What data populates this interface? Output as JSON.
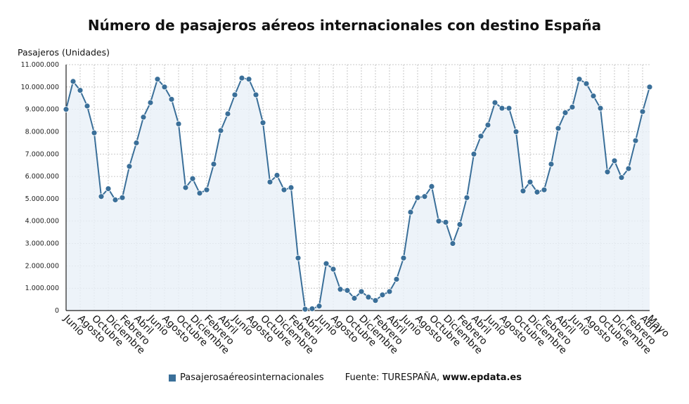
{
  "title": "Número de pasajeros aéreos internacionales con destino España",
  "colors": {
    "line": "#3a6f99",
    "marker": "#3a6f99",
    "fill": "#e8f0f7",
    "grid": "#b9b9b9"
  },
  "legend": {
    "label": "Pasajerosaéreosinternacionales"
  },
  "source": {
    "label": "Fuente: TURESPAÑA,",
    "site": "www.epdata.es"
  },
  "chart_data": {
    "type": "line",
    "title": "Número de pasajeros aéreos internacionales con destino España",
    "ylabel": "Pasajeros (Unidades)",
    "ylim": [
      0,
      11000000
    ],
    "yticks": [
      0,
      1000000,
      2000000,
      3000000,
      4000000,
      5000000,
      6000000,
      7000000,
      8000000,
      9000000,
      10000000,
      11000000
    ],
    "ytick_labels": [
      "0",
      "1.000.000",
      "2.000.000",
      "3.000.000",
      "4.000.000",
      "5.000.000",
      "6.000.000",
      "7.000.000",
      "8.000.000",
      "9.000.000",
      "10.000.000",
      "11.000.000"
    ],
    "grid": true,
    "x_tick_labels": [
      "Junio",
      "Agosto",
      "Octubre",
      "Diciembre",
      "Febrero",
      "Abril",
      "Junio",
      "Agosto",
      "Octubre",
      "Diciembre",
      "Febrero",
      "Abril",
      "Junio",
      "Agosto",
      "Octubre",
      "Diciembre",
      "Febrero",
      "Abril",
      "Junio",
      "Agosto",
      "Octubre",
      "Diciembre",
      "Febrero",
      "Abril",
      "Junio",
      "Agosto",
      "Octubre",
      "Diciembre",
      "Febrero",
      "Abril",
      "Junio",
      "Agosto",
      "Octubre",
      "Diciembre",
      "Febrero",
      "Abril",
      "Junio",
      "Agosto",
      "Octubre",
      "Diciembre",
      "Febrero",
      "Abril",
      "Mayo"
    ],
    "series": [
      {
        "name": "Pasajerosaéreosinternacionales",
        "values": [
          9000000,
          10250000,
          9850000,
          9150000,
          7950000,
          5100000,
          5450000,
          4950000,
          5050000,
          6450000,
          7500000,
          8650000,
          9300000,
          10350000,
          10000000,
          9450000,
          8350000,
          5500000,
          5900000,
          5250000,
          5400000,
          6550000,
          8050000,
          8800000,
          9650000,
          10400000,
          10350000,
          9650000,
          8400000,
          5750000,
          6050000,
          5400000,
          5500000,
          2350000,
          60000,
          80000,
          200000,
          2100000,
          1850000,
          950000,
          900000,
          550000,
          850000,
          600000,
          450000,
          700000,
          850000,
          1400000,
          2350000,
          4400000,
          5050000,
          5100000,
          5550000,
          4000000,
          3950000,
          3000000,
          3850000,
          5050000,
          7000000,
          7800000,
          8300000,
          9300000,
          9050000,
          9050000,
          8000000,
          5350000,
          5750000,
          5300000,
          5400000,
          6550000,
          8150000,
          8850000,
          9100000,
          10350000,
          10150000,
          9600000,
          9050000,
          6200000,
          6700000,
          5950000,
          6350000,
          7600000,
          8900000,
          10000000
        ]
      }
    ]
  }
}
